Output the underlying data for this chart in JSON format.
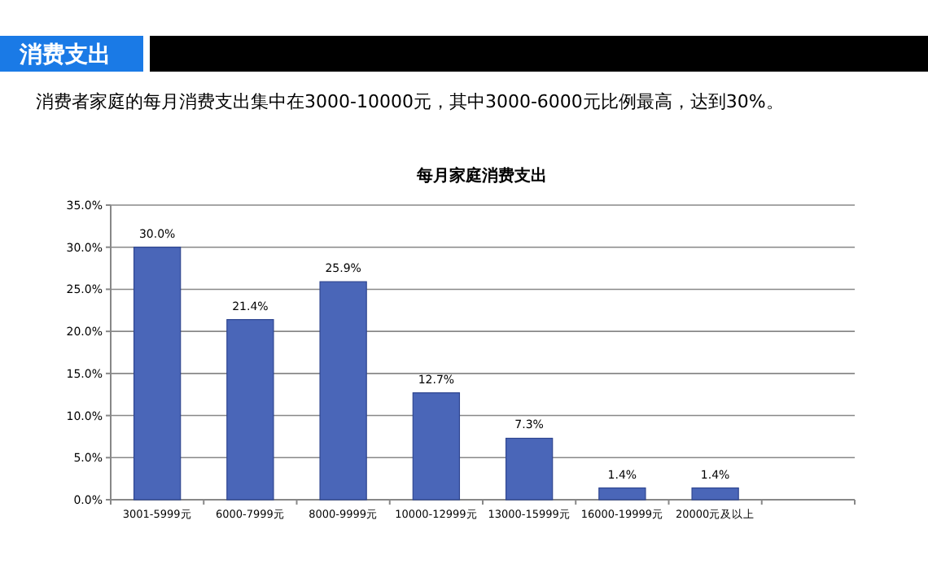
{
  "chart_data": {
    "type": "bar",
    "title": "每月家庭消费支出",
    "subtitle": "消费者家庭的每月消费支出集中在3000-10000元，其中3000-6000元比例最高，达到30%。",
    "annotations": [
      "消费支出"
    ],
    "categories": [
      "3001-5999元",
      "6000-7999元",
      "8000-9999元",
      "10000-12999元",
      "13000-15999元",
      "16000-19999元",
      "20000元及以上",
      null
    ],
    "values": [
      30.0,
      21.4,
      25.9,
      12.7,
      7.3,
      1.4,
      1.4,
      null
    ],
    "value_labels": [
      "30.0%",
      "21.4%",
      "25.9%",
      "12.7%",
      "7.3%",
      "1.4%",
      "1.4%",
      null
    ],
    "color": "#4a66b8",
    "ylim": [
      0,
      35
    ],
    "yticks": [
      {
        "value": 0,
        "label": "0.0%"
      },
      {
        "value": 5,
        "label": "5.0%"
      },
      {
        "value": 10,
        "label": "10.0%"
      },
      {
        "value": 15,
        "label": "15.0%"
      },
      {
        "value": 20,
        "label": "20.0%"
      },
      {
        "value": 25,
        "label": "25.0%"
      },
      {
        "value": 30,
        "label": "30.0%"
      },
      {
        "value": 35,
        "label": "35.0%"
      }
    ],
    "grid": "y"
  }
}
